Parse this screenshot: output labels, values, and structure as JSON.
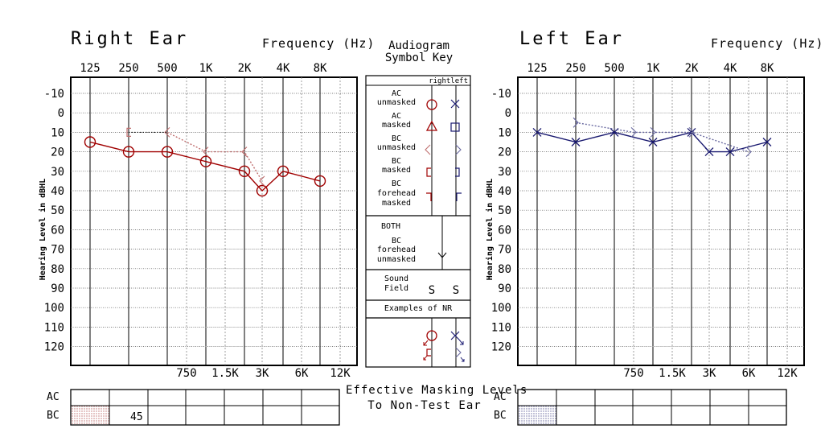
{
  "right": {
    "title": "Right Ear",
    "freq_title": "Frequency (Hz)",
    "ylabel": "Hearing Level in dBHL",
    "mask_ac_label": "AC",
    "mask_bc_label": "BC",
    "mask_bc_value": "45"
  },
  "left": {
    "title": "Left Ear",
    "freq_title": "Frequency (Hz)",
    "ylabel": "Hearing Level in dBHL",
    "mask_ac_label": "AC",
    "mask_bc_label": "BC"
  },
  "key": {
    "title_line1": "Audiogram",
    "title_line2": "Symbol Key",
    "header": "rightleft",
    "rows": [
      "AC unmasked",
      "AC masked",
      "BC unmasked",
      "BC masked",
      "BC forehead masked"
    ],
    "both_label": "BOTH",
    "both_row": "BC forehead unmasked",
    "sound_field": "Sound Field",
    "sound_field_symbol": "S",
    "nr_label": "Examples of NR"
  },
  "effective_masking": {
    "line1": "Effective Masking Levels",
    "line2": "To Non-Test Ear"
  },
  "colors": {
    "right": "#a00000",
    "right_bc": "#c07070",
    "left": "#1a1a70",
    "left_bc": "#6a6aa0"
  },
  "chart_data": [
    {
      "type": "line",
      "title": "Right Ear",
      "xlabel": "Frequency (Hz)",
      "ylabel": "Hearing Level in dBHL",
      "x_ticks_top": [
        "125",
        "250",
        "500",
        "1K",
        "2K",
        "4K",
        "8K"
      ],
      "x_ticks_bottom": [
        "750",
        "1.5K",
        "3K",
        "6K",
        "12K"
      ],
      "y_ticks": [
        "-10",
        "0",
        "10",
        "20",
        "30",
        "40",
        "50",
        "60",
        "70",
        "80",
        "90",
        "100",
        "110",
        "120"
      ],
      "ylim": [
        -10,
        120
      ],
      "y_inverted": true,
      "series": [
        {
          "symbol": "O",
          "x": [
            "125",
            "250",
            "500",
            "1K",
            "2K",
            "3K",
            "4K",
            "8K"
          ],
          "y": [
            15,
            20,
            20,
            25,
            30,
            40,
            30,
            35
          ]
        },
        {
          "symbol": "<",
          "x": [
            "500",
            "1K",
            "2K",
            "3K"
          ],
          "y": [
            10,
            20,
            20,
            35
          ]
        },
        {
          "symbol": "[",
          "x": [
            "250"
          ],
          "y": [
            10
          ]
        }
      ]
    },
    {
      "type": "line",
      "title": "Left Ear",
      "xlabel": "Frequency (Hz)",
      "ylabel": "Hearing Level in dBHL",
      "x_ticks_top": [
        "125",
        "250",
        "500",
        "1K",
        "2K",
        "4K",
        "8K"
      ],
      "x_ticks_bottom": [
        "750",
        "1.5K",
        "3K",
        "6K",
        "12K"
      ],
      "y_ticks": [
        "-10",
        "0",
        "10",
        "20",
        "30",
        "40",
        "50",
        "60",
        "70",
        "80",
        "90",
        "100",
        "110",
        "120"
      ],
      "ylim": [
        -10,
        120
      ],
      "y_inverted": true,
      "series": [
        {
          "symbol": "X",
          "x": [
            "125",
            "250",
            "500",
            "1K",
            "2K",
            "3K",
            "4K",
            "8K"
          ],
          "y": [
            10,
            15,
            10,
            15,
            10,
            20,
            20,
            15
          ]
        },
        {
          "symbol": ">",
          "x": [
            "250",
            "750",
            "1K",
            "2K",
            "6K"
          ],
          "y": [
            5,
            10,
            10,
            10,
            20
          ]
        }
      ]
    }
  ]
}
